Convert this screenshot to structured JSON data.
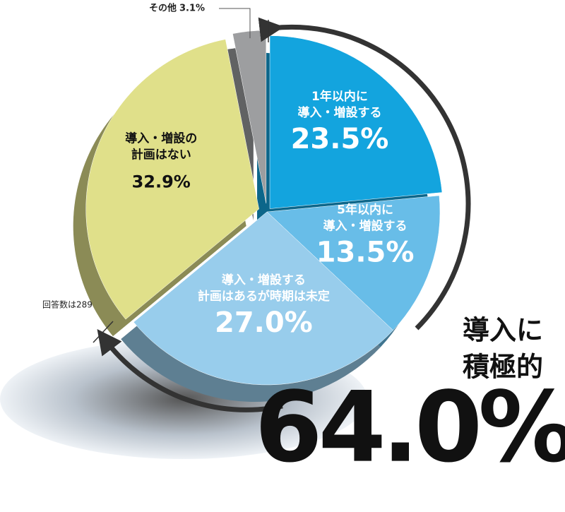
{
  "chart_data": {
    "type": "pie",
    "categories": [
      [
        "1年以内に",
        "導入・増設する"
      ],
      [
        "5年以内に",
        "導入・増設する"
      ],
      [
        "導入・増設する",
        "計画はあるが時期は未定"
      ],
      [
        "導入・増設の",
        "計画はない"
      ],
      [
        "その他"
      ]
    ],
    "values": [
      23.5,
      13.5,
      27.0,
      32.9,
      3.1
    ],
    "value_labels": [
      "23.5%",
      "13.5%",
      "27.0%",
      "32.9%",
      "3.1%"
    ],
    "colors": [
      "#13a4de",
      "#68bde8",
      "#98cdec",
      "#e0e08a",
      "#9d9ea0"
    ],
    "note": "回答数は289",
    "highlight": {
      "lines": [
        "導入に",
        "積極的"
      ],
      "value": 64.0,
      "value_label": "64.0%"
    }
  }
}
